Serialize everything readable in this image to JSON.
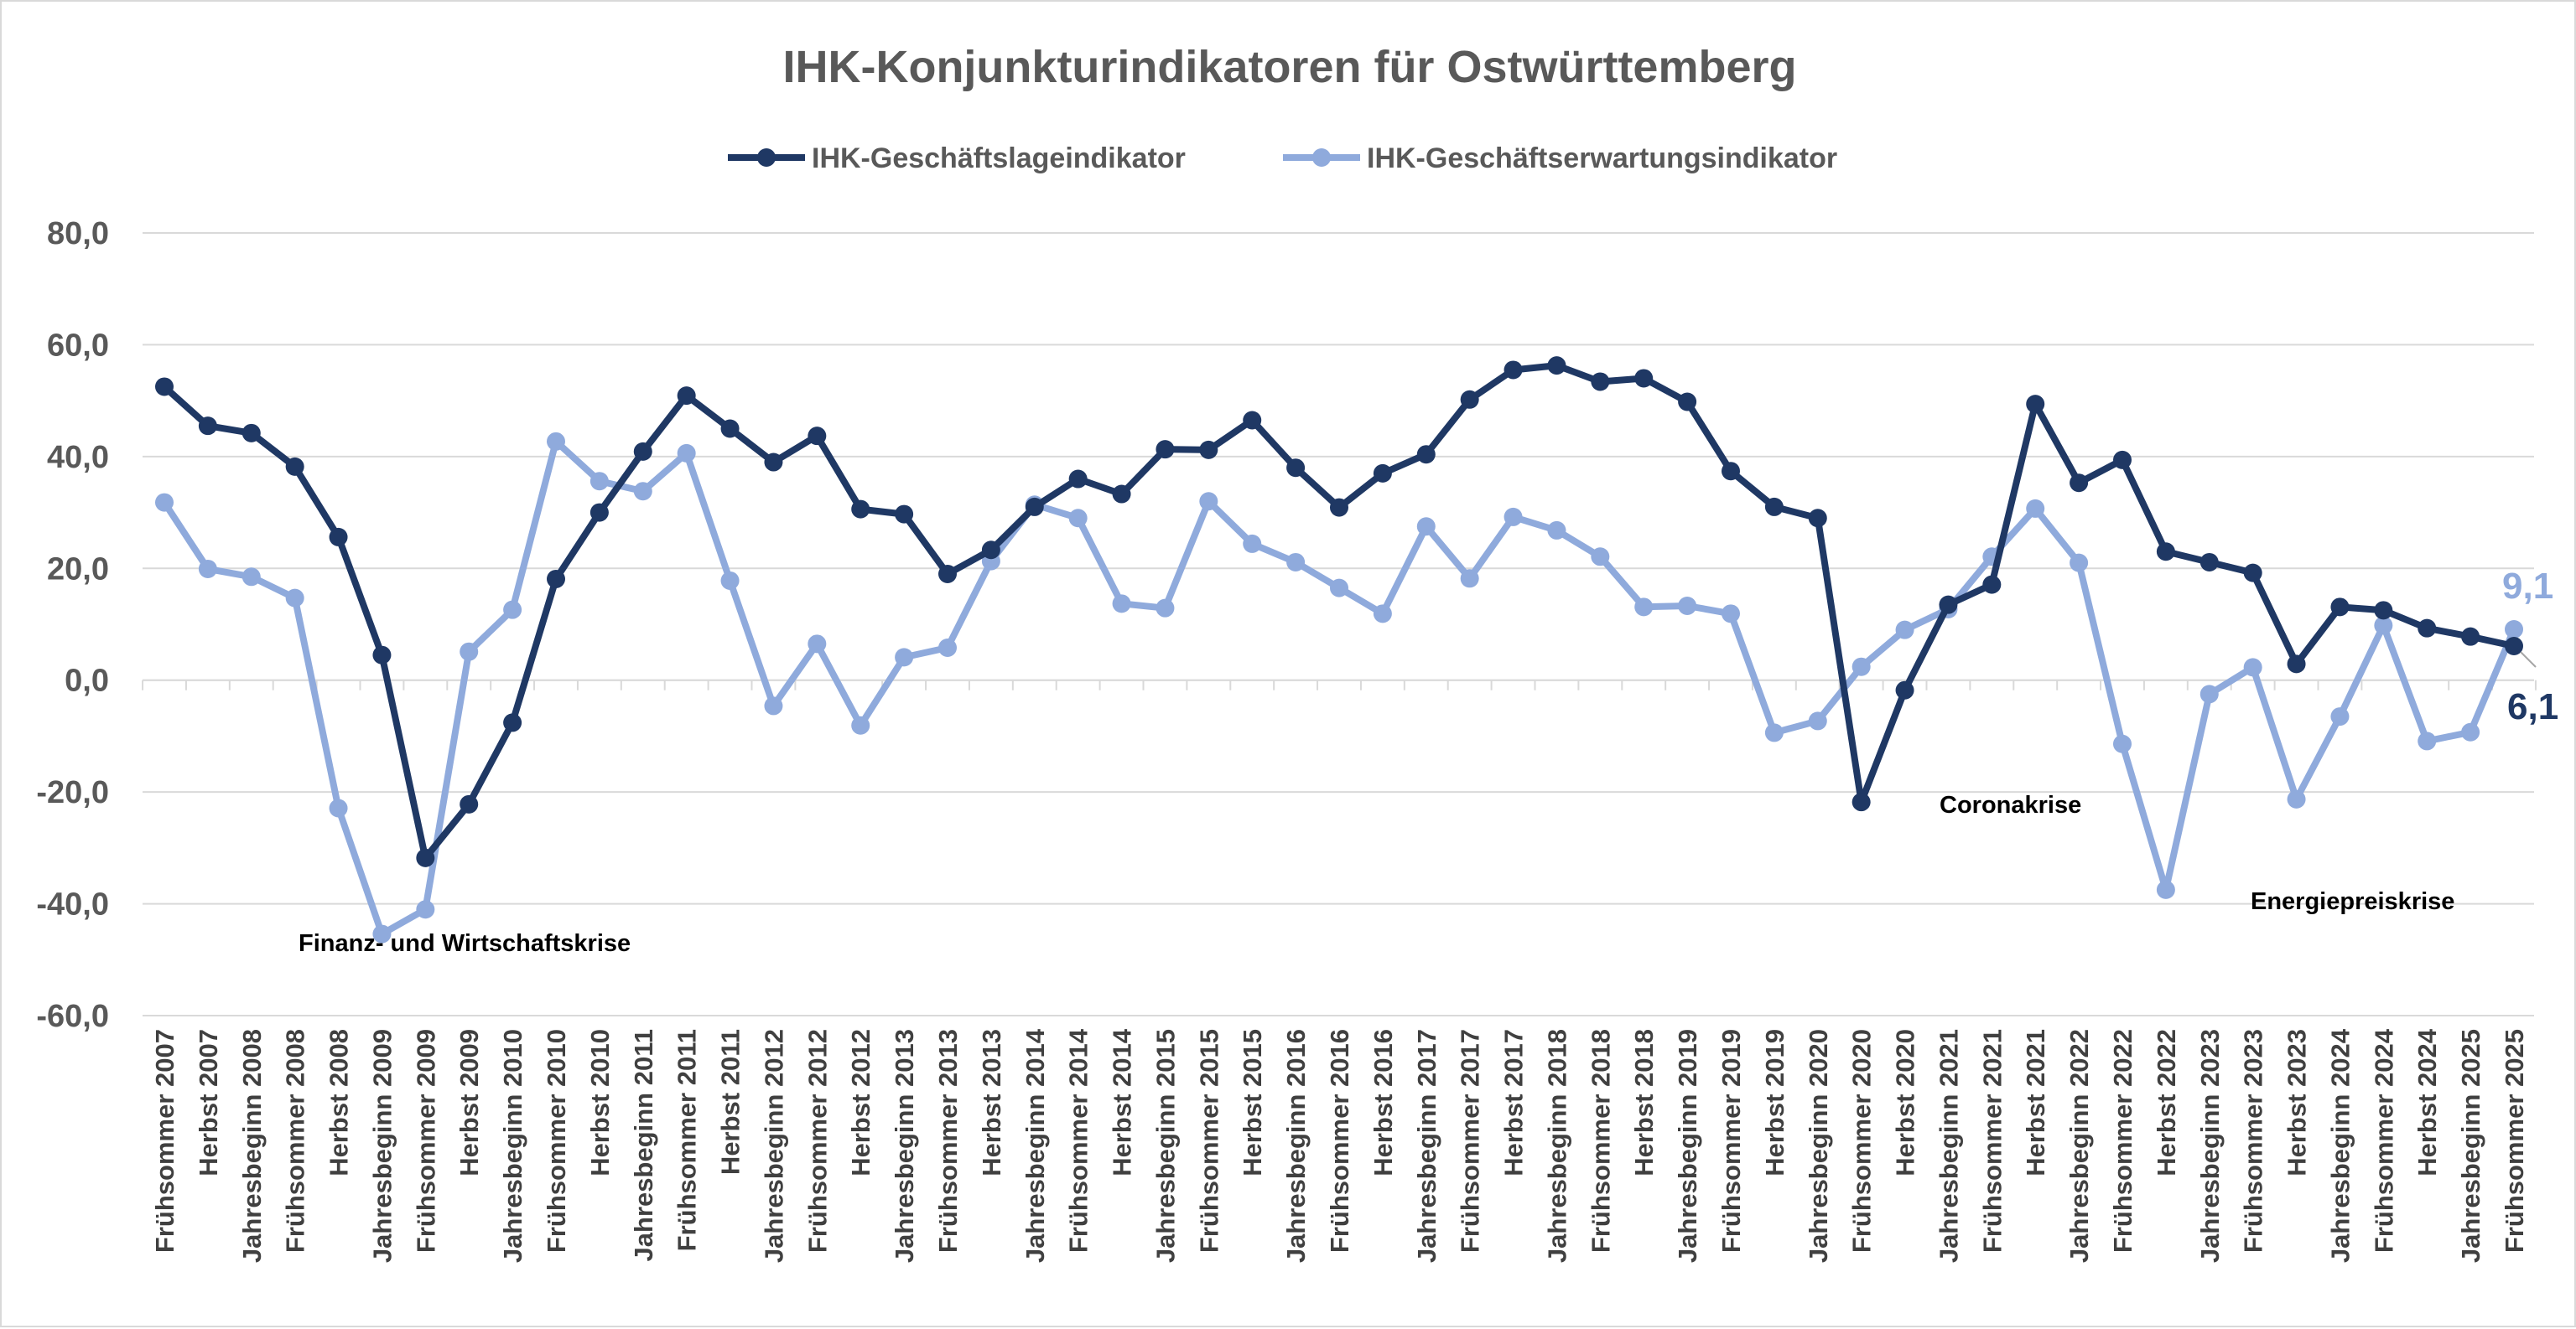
{
  "chart_data": {
    "type": "line",
    "title": "IHK-Konjunkturindikatoren für Ostwürttemberg",
    "xlabel": "",
    "ylabel": "",
    "ylim": [
      -60,
      80
    ],
    "yticks": [
      "80,0",
      "60,0",
      "40,0",
      "20,0",
      "0,0",
      "-20,0",
      "-40,0",
      "-60,0"
    ],
    "ytick_values": [
      80,
      60,
      40,
      20,
      0,
      -20,
      -40,
      -60
    ],
    "grid": "horizontal",
    "legend_position": "top",
    "categories": [
      "Frühsommer 2007",
      "Herbst 2007",
      "Jahresbeginn 2008",
      "Frühsommer 2008",
      "Herbst 2008",
      "Jahresbeginn 2009",
      "Frühsommer 2009",
      "Herbst 2009",
      "Jahresbeginn 2010",
      "Frühsommer 2010",
      "Herbst 2010",
      "Jahresbeginn 2011",
      "Frühsommer 2011",
      "Herbst 2011",
      "Jahresbeginn 2012",
      "Frühsommer 2012",
      "Herbst 2012",
      "Jahresbeginn 2013",
      "Frühsommer 2013",
      "Herbst 2013",
      "Jahresbeginn 2014",
      "Frühsommer 2014",
      "Herbst 2014",
      "Jahresbeginn 2015",
      "Frühsommer 2015",
      "Herbst 2015",
      "Jahresbeginn 2016",
      "Frühsommer 2016",
      "Herbst 2016",
      "Jahresbeginn 2017",
      "Frühsommer 2017",
      "Herbst 2017",
      "Jahresbeginn 2018",
      "Frühsommer 2018",
      "Herbst 2018",
      "Jahresbeginn 2019",
      "Frühsommer 2019",
      "Herbst 2019",
      "Jahresbeginn 2020",
      "Frühsommer 2020",
      "Herbst 2020",
      "Jahresbeginn 2021",
      "Frühsommer 2021",
      "Herbst 2021",
      "Jahresbeginn 2022",
      "Frühsommer 2022",
      "Herbst 2022",
      "Jahresbeginn 2023",
      "Frühsommer 2023",
      "Herbst 2023",
      "Jahresbeginn 2024",
      "Frühsommer 2024",
      "Herbst 2024",
      "Jahresbeginn 2025",
      "Frühsommer 2025"
    ],
    "series": [
      {
        "name": "IHK-Geschäftslageindikator",
        "color": "#1f3864",
        "values": [
          52.5,
          45.5,
          44.2,
          38.2,
          25.6,
          4.5,
          -31.8,
          -22.2,
          -7.6,
          18.1,
          30.0,
          40.9,
          50.9,
          45.0,
          39.0,
          43.7,
          30.6,
          29.7,
          19.0,
          23.3,
          31.0,
          36.0,
          33.3,
          41.3,
          41.2,
          46.5,
          38.0,
          30.9,
          37.0,
          40.4,
          50.2,
          55.5,
          56.3,
          53.4,
          54.0,
          49.8,
          37.4,
          31.0,
          29.0,
          -21.8,
          -1.8,
          13.5,
          17.1,
          49.4,
          35.3,
          39.4,
          23.0,
          21.1,
          19.2,
          2.9,
          13.1,
          12.5,
          9.3,
          7.8,
          6.1
        ]
      },
      {
        "name": "IHK-Geschäftserwartungsindikator",
        "color": "#8faadc",
        "values": [
          31.8,
          19.9,
          18.5,
          14.7,
          -22.9,
          -45.4,
          -41.0,
          5.1,
          12.6,
          42.7,
          35.6,
          33.8,
          40.6,
          17.8,
          -4.6,
          6.5,
          -8.1,
          4.1,
          5.8,
          21.3,
          31.4,
          29.0,
          13.7,
          12.9,
          32.0,
          24.4,
          21.1,
          16.5,
          11.9,
          27.5,
          18.2,
          29.2,
          26.8,
          22.1,
          13.1,
          13.3,
          11.9,
          -9.4,
          -7.3,
          2.4,
          9.0,
          12.7,
          22.1,
          30.7,
          21.0,
          -11.4,
          -37.5,
          -2.5,
          2.3,
          -21.3,
          -6.5,
          9.8,
          -10.9,
          -9.3,
          9.1
        ]
      }
    ],
    "end_labels": {
      "situation": "6,1",
      "expectation": "9,1"
    },
    "annotations": {
      "finance_crisis": "Finanz- und Wirtschaftskrise",
      "corona_crisis": "Coronakrise",
      "energy_crisis": "Energiepreiskrise"
    }
  }
}
